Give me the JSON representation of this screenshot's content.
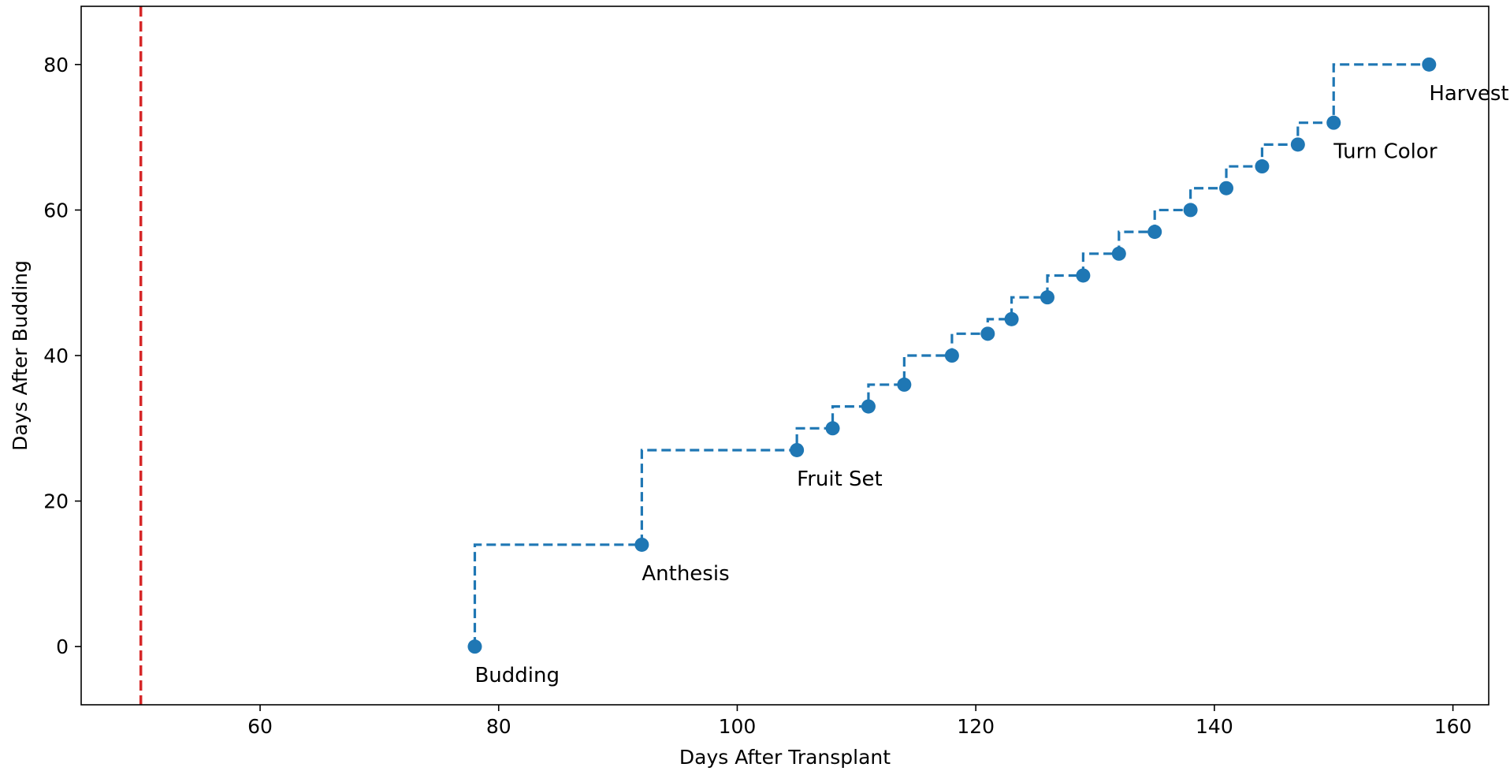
{
  "chart_data": {
    "type": "line",
    "drawstyle": "steps-post",
    "xlabel": "Days After Transplant",
    "ylabel": "Days After Budding",
    "xlim": [
      45,
      163
    ],
    "ylim": [
      -8,
      88
    ],
    "xticks": [
      60,
      80,
      100,
      120,
      140,
      160
    ],
    "yticks": [
      0,
      20,
      40,
      60,
      80
    ],
    "grid": false,
    "series": [
      {
        "color": "#1f77b4",
        "linestyle": "dashed",
        "marker": "circle",
        "x": [
          78,
          92,
          105,
          108,
          111,
          114,
          118,
          121,
          123,
          126,
          129,
          132,
          135,
          138,
          141,
          144,
          147,
          150,
          158
        ],
        "y": [
          0,
          14,
          27,
          30,
          33,
          36,
          40,
          43,
          45,
          48,
          51,
          54,
          57,
          60,
          63,
          66,
          69,
          72,
          80
        ]
      }
    ],
    "reference_lines": [
      {
        "orientation": "vertical",
        "x": 50,
        "color": "#d62728",
        "linestyle": "dashed"
      }
    ],
    "annotations": [
      {
        "text": "Budding",
        "x": 78,
        "y": 0
      },
      {
        "text": "Anthesis",
        "x": 92,
        "y": 14
      },
      {
        "text": "Fruit Set",
        "x": 105,
        "y": 27
      },
      {
        "text": "Turn Color",
        "x": 150,
        "y": 72
      },
      {
        "text": "Harvest",
        "x": 158,
        "y": 80
      }
    ]
  }
}
